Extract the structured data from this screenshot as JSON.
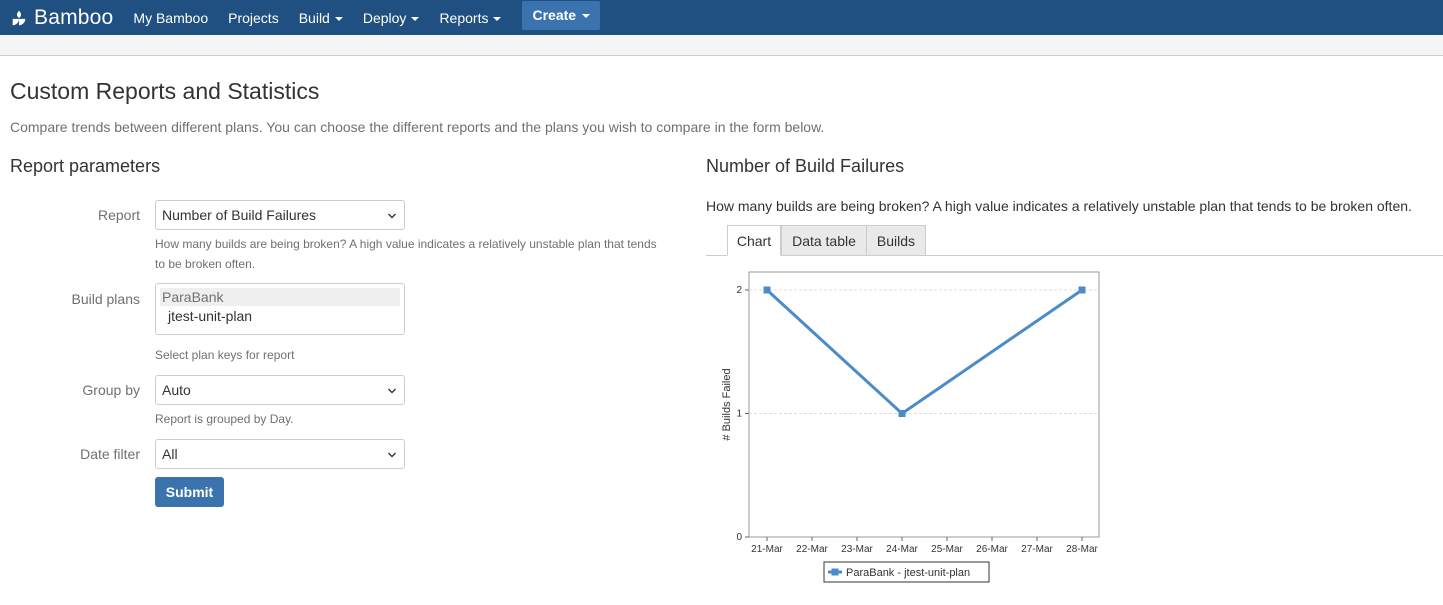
{
  "header": {
    "logo_text": "Bamboo",
    "nav": [
      {
        "label": "My Bamboo",
        "dropdown": false
      },
      {
        "label": "Projects",
        "dropdown": false
      },
      {
        "label": "Build",
        "dropdown": true
      },
      {
        "label": "Deploy",
        "dropdown": true
      },
      {
        "label": "Reports",
        "dropdown": true
      }
    ],
    "create_label": "Create"
  },
  "page": {
    "title": "Custom Reports and Statistics",
    "description": "Compare trends between different plans. You can choose the different reports and the plans you wish to compare in the form below."
  },
  "form": {
    "section_title": "Report parameters",
    "report": {
      "label": "Report",
      "value": "Number of Build Failures",
      "help_line1": "How many builds are being broken? A high value indicates a relatively unstable plan that tends",
      "help_line2": "to be broken often."
    },
    "build_plans": {
      "label": "Build plans",
      "group": "ParaBank",
      "option": "jtest-unit-plan",
      "help": "Select plan keys for report"
    },
    "group_by": {
      "label": "Group by",
      "value": "Auto",
      "help": "Report is grouped by Day."
    },
    "date_filter": {
      "label": "Date filter",
      "value": "All"
    },
    "submit_label": "Submit"
  },
  "report": {
    "title": "Number of Build Failures",
    "description": "How many builds are being broken? A high value indicates a relatively unstable plan that tends to be broken often.",
    "tabs": [
      {
        "label": "Chart",
        "active": true
      },
      {
        "label": "Data table",
        "active": false
      },
      {
        "label": "Builds",
        "active": false
      }
    ]
  },
  "colors": {
    "header_bg": "#205081",
    "button_bg": "#3b73af",
    "series": "#4a8cc7"
  },
  "chart_data": {
    "type": "line",
    "categories": [
      "21-Mar",
      "22-Mar",
      "23-Mar",
      "24-Mar",
      "25-Mar",
      "26-Mar",
      "27-Mar",
      "28-Mar"
    ],
    "ylabel": "# Builds Failed",
    "xlabel": "",
    "ylim": [
      0,
      2
    ],
    "yticks": [
      0,
      1,
      2
    ],
    "grid": true,
    "legend": "bottom",
    "series": [
      {
        "name": "ParaBank - jtest-unit-plan",
        "points": [
          {
            "x": "21-Mar",
            "y": 2
          },
          {
            "x": "24-Mar",
            "y": 1
          },
          {
            "x": "28-Mar",
            "y": 2
          }
        ]
      }
    ]
  }
}
